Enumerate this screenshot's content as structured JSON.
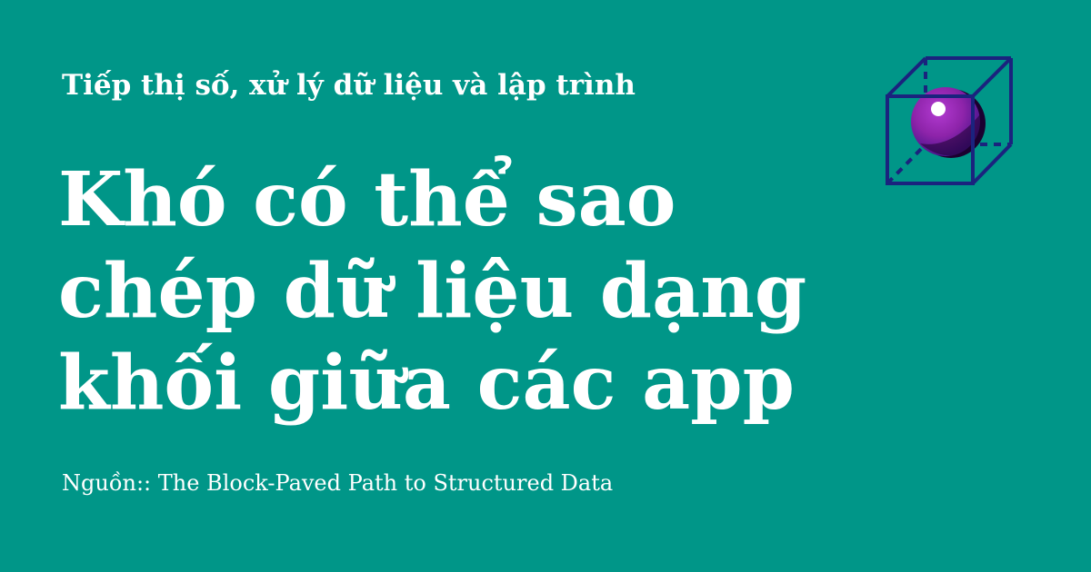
{
  "theme": {
    "background": "#009688",
    "text": "#ffffff",
    "cube_stroke": "#1a237e",
    "sphere": "#8e24aa",
    "sphere_dark": "#4a148c"
  },
  "header": {
    "eyebrow": "Tiếp thị số, xử lý dữ liệu và lập trình"
  },
  "article": {
    "headline_lines": [
      "Khó có thể sao",
      "chép dữ liệu dạng",
      "khối giữa các app"
    ]
  },
  "footer": {
    "source": "Nguồn:: The Block-Paved Path to Structured Data"
  },
  "logo": {
    "icon": "cube-with-sphere-icon"
  }
}
